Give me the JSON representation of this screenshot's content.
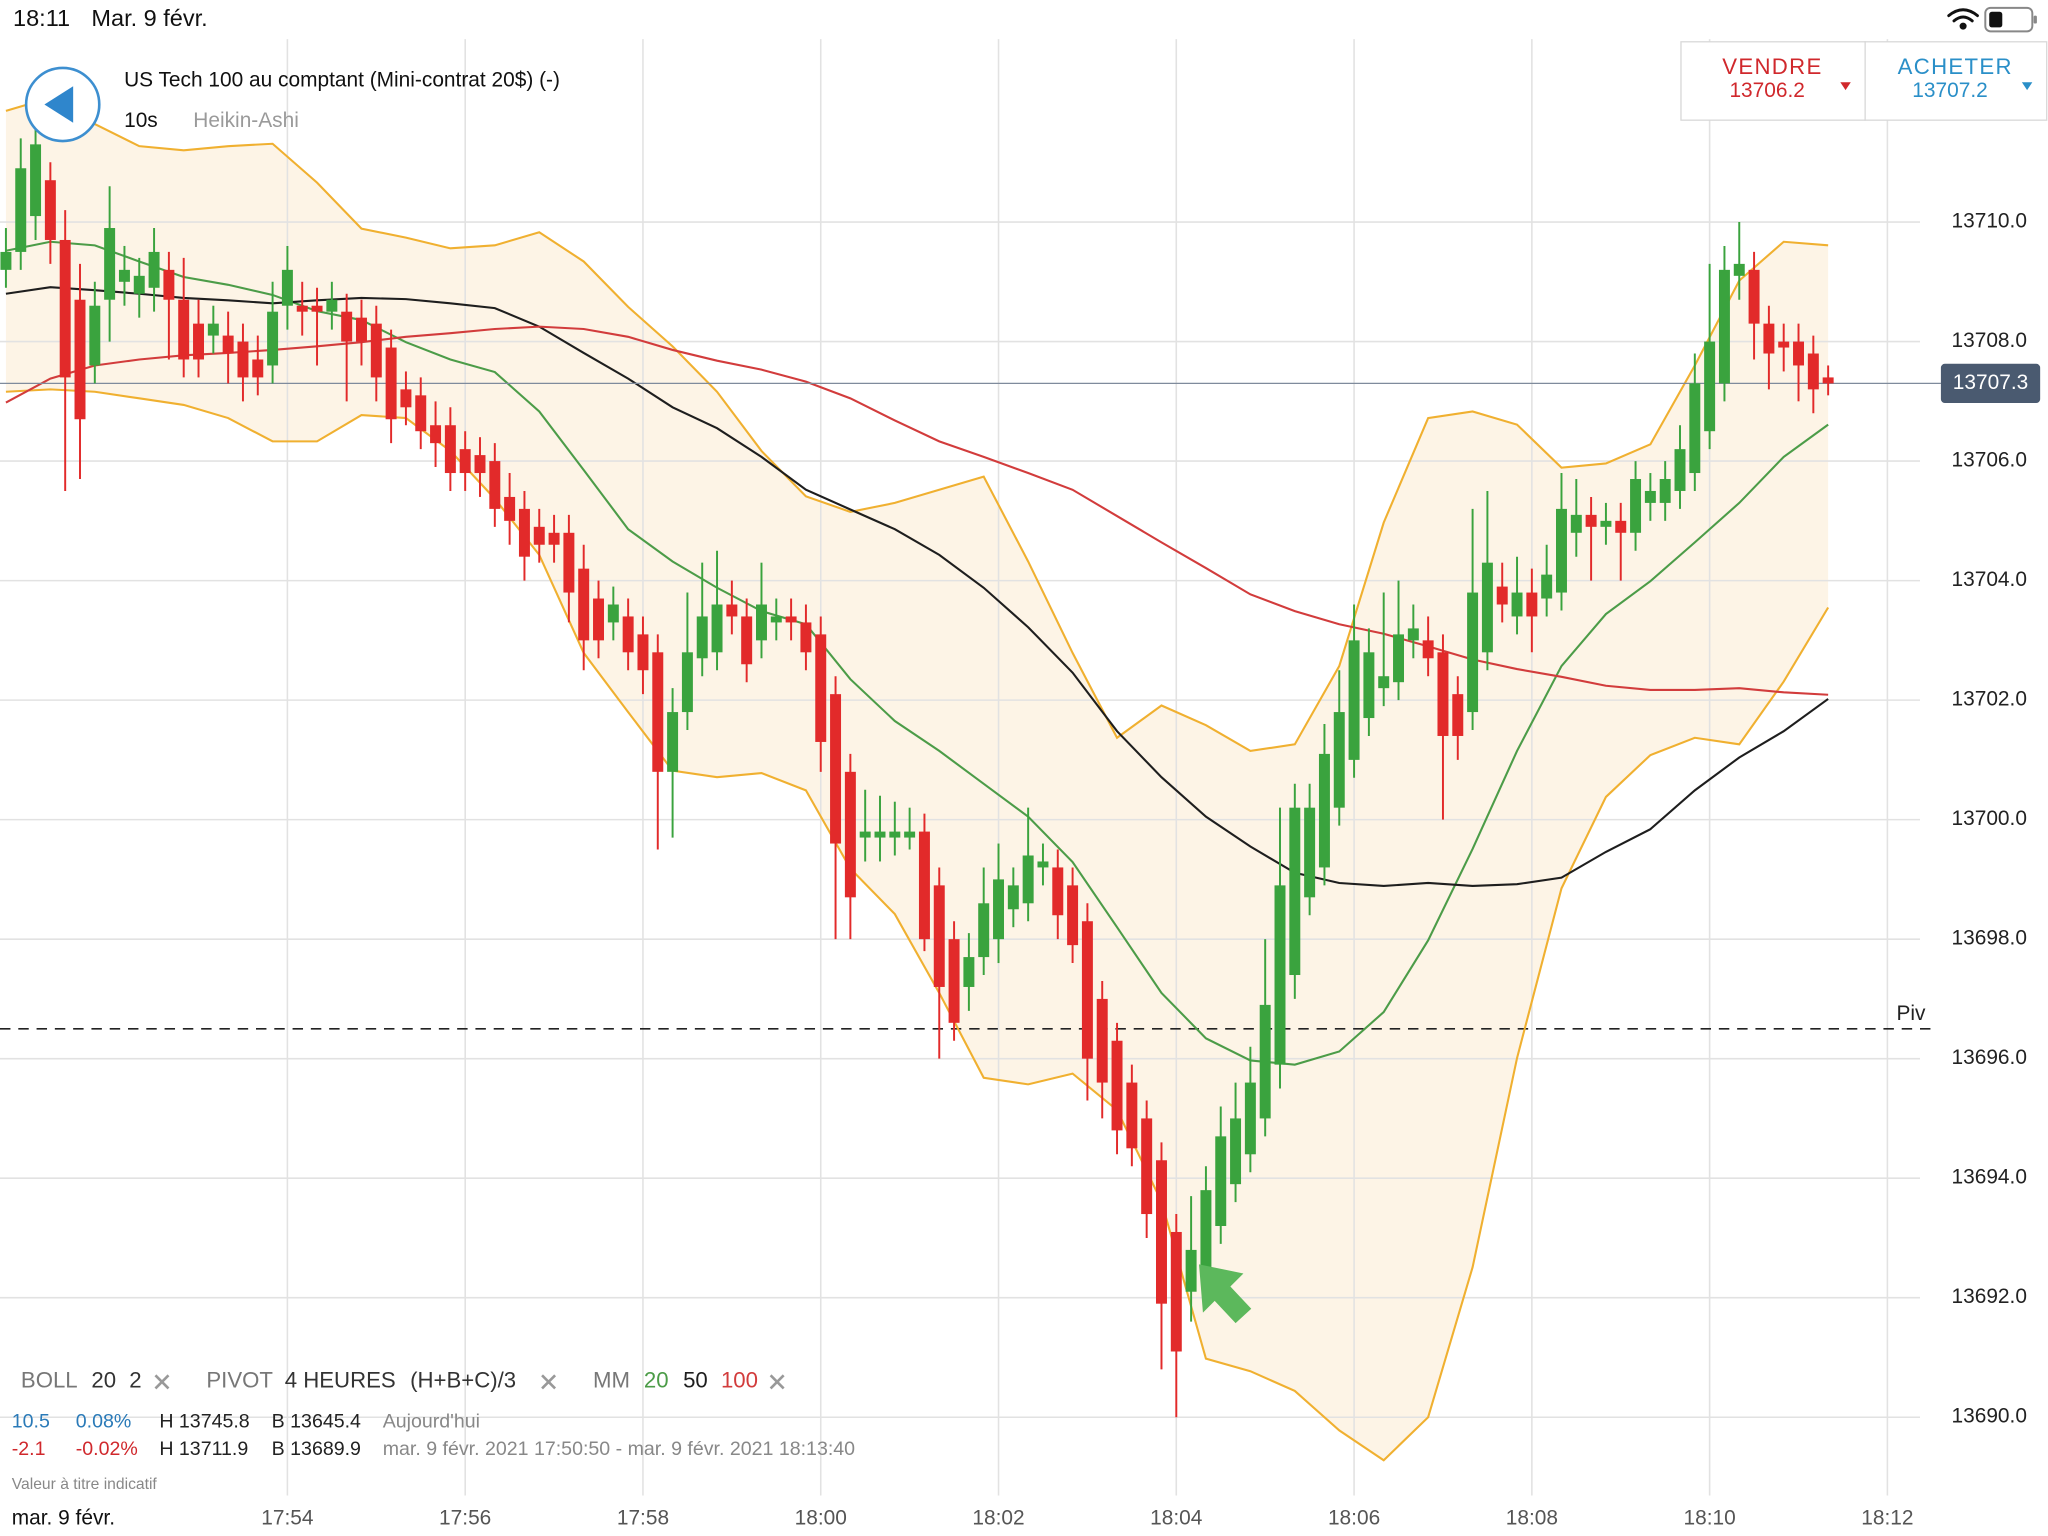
{
  "status_bar": {
    "time": "18:11",
    "date": "Mar. 9 févr."
  },
  "header": {
    "title": "US Tech 100 au comptant (Mini-contrat 20$) (-)",
    "interval": "10s",
    "chart_style": "Heikin-Ashi"
  },
  "quote": {
    "sell": {
      "label": "VENDRE",
      "price": 13706.2
    },
    "buy": {
      "label": "ACHETER",
      "price": 13707.2
    }
  },
  "chart_data": {
    "type": "candlestick",
    "x": [
      64250,
      64260,
      64270,
      64280,
      64290,
      64300,
      64310,
      64320,
      64330,
      64340,
      64350,
      64360,
      64370,
      64380,
      64390,
      64400,
      64410,
      64420,
      64430,
      64440,
      64450,
      64460,
      64470,
      64480,
      64490,
      64500,
      64510,
      64520,
      64530,
      64540,
      64550,
      64560,
      64570,
      64580,
      64590,
      64600,
      64610,
      64620,
      64630,
      64640,
      64650,
      64660,
      64670,
      64680,
      64690,
      64700,
      64710,
      64720,
      64730,
      64740,
      64750,
      64760,
      64770,
      64780,
      64790,
      64800,
      64810,
      64820,
      64830,
      64840,
      64850,
      64860,
      64870,
      64880,
      64890,
      64900,
      64910,
      64920,
      64930,
      64940,
      64950,
      64960,
      64970,
      64980,
      64990,
      65000,
      65010,
      65020,
      65030,
      65040,
      65050,
      65060,
      65070,
      65080,
      65090,
      65100,
      65110,
      65120,
      65130,
      65140,
      65150,
      65160,
      65170,
      65180,
      65190,
      65200,
      65210,
      65220,
      65230,
      65240,
      65250,
      65260,
      65270,
      65280,
      65290,
      65300,
      65310,
      65320,
      65330,
      65340,
      65350,
      65360,
      65370,
      65380,
      65390,
      65400,
      65410,
      65420,
      65430,
      65440,
      65450,
      65460,
      65470,
      65480
    ],
    "open": [
      13709.2,
      13709.5,
      13710.1,
      13710.7,
      13709.7,
      13708.7,
      13707.6,
      13708.7,
      13709.0,
      13708.8,
      13708.9,
      13709.2,
      13708.7,
      13708.3,
      13708.1,
      13708.1,
      13708.0,
      13707.7,
      13707.6,
      13708.6,
      13708.6,
      13708.6,
      13708.5,
      13708.5,
      13708.4,
      13708.3,
      13707.9,
      13707.2,
      13707.1,
      13706.6,
      13706.6,
      13706.2,
      13706.1,
      13706.0,
      13705.4,
      13705.2,
      13704.9,
      13704.8,
      13704.8,
      13704.2,
      13703.7,
      13703.3,
      13703.4,
      13703.1,
      13702.8,
      13700.8,
      13701.8,
      13702.7,
      13702.8,
      13703.6,
      13703.4,
      13703.0,
      13703.3,
      13703.4,
      13703.3,
      13703.1,
      13702.1,
      13700.8,
      13699.7,
      13699.7,
      13699.7,
      13699.7,
      13699.8,
      13698.9,
      13698.0,
      13697.2,
      13697.7,
      13698.0,
      13698.5,
      13698.6,
      13699.2,
      13699.2,
      13698.9,
      13698.3,
      13697.0,
      13696.3,
      13695.6,
      13695.0,
      13694.3,
      13693.1,
      13692.1,
      13692.5,
      13693.2,
      13693.9,
      13694.4,
      13695.0,
      13695.9,
      13697.4,
      13698.7,
      13699.2,
      13700.2,
      13701.0,
      13701.7,
      13702.2,
      13702.3,
      13703.0,
      13703.0,
      13702.8,
      13702.1,
      13701.8,
      13702.8,
      13703.9,
      13703.4,
      13703.8,
      13703.7,
      13703.8,
      13704.8,
      13705.1,
      13704.9,
      13705.0,
      13704.8,
      13705.3,
      13705.3,
      13705.5,
      13705.8,
      13706.5,
      13707.3,
      13709.1,
      13709.2,
      13708.3,
      13708.0,
      13708.0,
      13707.8,
      13707.4
    ],
    "high": [
      13709.9,
      13711.4,
      13711.6,
      13711.0,
      13710.2,
      13709.3,
      13709.0,
      13710.6,
      13709.6,
      13709.4,
      13709.9,
      13709.5,
      13709.4,
      13708.7,
      13708.6,
      13708.5,
      13708.3,
      13708.1,
      13709.0,
      13709.6,
      13709.0,
      13708.9,
      13709.0,
      13708.8,
      13708.7,
      13708.6,
      13708.2,
      13707.5,
      13707.4,
      13707.0,
      13706.9,
      13706.5,
      13706.4,
      13706.3,
      13705.8,
      13705.5,
      13705.2,
      13705.1,
      13705.1,
      13704.6,
      13704.0,
      13703.9,
      13703.7,
      13703.4,
      13703.1,
      13702.2,
      13703.8,
      13704.3,
      13704.5,
      13704.0,
      13703.7,
      13704.3,
      13703.7,
      13703.7,
      13703.6,
      13703.4,
      13702.4,
      13701.1,
      13700.5,
      13700.4,
      13700.3,
      13700.2,
      13700.1,
      13699.2,
      13698.3,
      13698.1,
      13699.2,
      13699.6,
      13699.2,
      13700.2,
      13699.6,
      13699.5,
      13699.2,
      13698.6,
      13697.3,
      13696.6,
      13695.9,
      13695.3,
      13694.6,
      13693.4,
      13693.7,
      13694.2,
      13695.2,
      13695.6,
      13696.2,
      13698.0,
      13700.2,
      13700.6,
      13700.6,
      13701.6,
      13702.5,
      13703.6,
      13703.2,
      13703.8,
      13704.0,
      13703.6,
      13703.4,
      13703.1,
      13702.4,
      13705.2,
      13705.5,
      13704.3,
      13704.4,
      13704.2,
      13704.6,
      13705.8,
      13705.7,
      13705.4,
      13705.3,
      13705.3,
      13706.0,
      13705.8,
      13706.0,
      13706.6,
      13707.8,
      13709.3,
      13709.6,
      13710.0,
      13709.5,
      13708.6,
      13708.3,
      13708.3,
      13708.1,
      13707.6
    ],
    "low": [
      13708.9,
      13709.2,
      13709.7,
      13709.3,
      13705.5,
      13705.7,
      13707.3,
      13708.0,
      13708.6,
      13708.4,
      13708.5,
      13707.7,
      13707.4,
      13707.4,
      13707.8,
      13707.3,
      13707.0,
      13707.1,
      13707.3,
      13708.2,
      13708.1,
      13707.6,
      13708.2,
      13707.0,
      13707.6,
      13707.0,
      13706.3,
      13706.6,
      13706.2,
      13705.9,
      13705.5,
      13705.5,
      13705.4,
      13704.9,
      13704.6,
      13704.0,
      13704.3,
      13704.3,
      13703.3,
      13702.5,
      13702.7,
      13703.0,
      13702.5,
      13702.1,
      13699.5,
      13699.7,
      13701.5,
      13702.4,
      13702.5,
      13703.1,
      13702.3,
      13702.7,
      13703.0,
      13703.0,
      13702.5,
      13700.8,
      13698.0,
      13698.0,
      13699.3,
      13699.3,
      13699.4,
      13699.5,
      13697.8,
      13696.0,
      13696.3,
      13696.8,
      13697.4,
      13697.6,
      13698.2,
      13698.3,
      13698.9,
      13698.0,
      13697.6,
      13695.3,
      13695.0,
      13694.4,
      13694.2,
      13693.0,
      13690.8,
      13690.0,
      13691.6,
      13692.2,
      13692.9,
      13693.6,
      13694.1,
      13694.7,
      13695.5,
      13697.0,
      13698.4,
      13698.9,
      13699.9,
      13700.7,
      13701.4,
      13701.9,
      13702.0,
      13702.7,
      13702.4,
      13700.0,
      13701.0,
      13701.5,
      13702.5,
      13703.3,
      13703.1,
      13702.8,
      13703.4,
      13703.5,
      13704.4,
      13704.0,
      13704.6,
      13704.0,
      13704.5,
      13705.0,
      13705.0,
      13705.2,
      13705.5,
      13706.2,
      13707.0,
      13708.7,
      13707.7,
      13707.2,
      13707.5,
      13707.0,
      13706.8,
      13707.1
    ],
    "close": [
      13709.5,
      13710.9,
      13711.3,
      13709.7,
      13707.4,
      13706.7,
      13708.6,
      13709.9,
      13709.2,
      13709.1,
      13709.5,
      13708.7,
      13707.7,
      13707.7,
      13708.3,
      13707.8,
      13707.4,
      13707.4,
      13708.5,
      13709.2,
      13708.5,
      13708.5,
      13708.7,
      13708.0,
      13708.0,
      13707.4,
      13706.7,
      13706.9,
      13706.5,
      13706.3,
      13705.8,
      13705.8,
      13705.8,
      13705.2,
      13705.0,
      13704.4,
      13704.6,
      13704.6,
      13703.8,
      13703.0,
      13703.0,
      13703.6,
      13702.8,
      13702.5,
      13700.8,
      13701.8,
      13702.8,
      13703.4,
      13703.6,
      13703.4,
      13702.6,
      13703.6,
      13703.4,
      13703.3,
      13702.8,
      13701.3,
      13699.6,
      13698.7,
      13699.8,
      13699.8,
      13699.8,
      13699.8,
      13698.0,
      13697.2,
      13696.6,
      13697.7,
      13698.6,
      13699.0,
      13698.9,
      13699.4,
      13699.3,
      13698.4,
      13697.9,
      13696.0,
      13695.6,
      13694.8,
      13694.5,
      13693.4,
      13691.9,
      13691.1,
      13692.8,
      13693.8,
      13694.7,
      13695.0,
      13695.6,
      13696.9,
      13698.9,
      13700.2,
      13700.2,
      13701.1,
      13701.8,
      13703.0,
      13702.8,
      13702.4,
      13703.1,
      13703.2,
      13702.7,
      13701.4,
      13701.4,
      13703.8,
      13704.3,
      13703.6,
      13703.8,
      13703.4,
      13704.1,
      13705.2,
      13705.1,
      13704.9,
      13705.0,
      13704.8,
      13705.7,
      13705.5,
      13705.7,
      13706.2,
      13707.3,
      13708.0,
      13709.2,
      13709.3,
      13708.3,
      13707.8,
      13707.9,
      13707.6,
      13707.2,
      13707.3
    ],
    "up_color": "#3aa33e",
    "down_color": "#e22a2a",
    "xlim": [
      64246,
      65542
    ],
    "xticks": [
      {
        "value": 64440,
        "label": "17:54"
      },
      {
        "value": 64560,
        "label": "17:56"
      },
      {
        "value": 64680,
        "label": "17:58"
      },
      {
        "value": 64800,
        "label": "18:00"
      },
      {
        "value": 64920,
        "label": "18:02"
      },
      {
        "value": 65040,
        "label": "18:04"
      },
      {
        "value": 65160,
        "label": "18:06"
      },
      {
        "value": 65280,
        "label": "18:08"
      },
      {
        "value": 65400,
        "label": "18:10"
      },
      {
        "value": 65520,
        "label": "18:12"
      }
    ],
    "ylim": [
      13688.69,
      13713.06
    ],
    "yticks": [
      {
        "value": 13690,
        "label": "13690.0"
      },
      {
        "value": 13692,
        "label": "13692.0"
      },
      {
        "value": 13694,
        "label": "13694.0"
      },
      {
        "value": 13696,
        "label": "13696.0"
      },
      {
        "value": 13698,
        "label": "13698.0"
      },
      {
        "value": 13700,
        "label": "13700.0"
      },
      {
        "value": 13702,
        "label": "13702.0"
      },
      {
        "value": 13704,
        "label": "13704.0"
      },
      {
        "value": 13706,
        "label": "13706.0"
      },
      {
        "value": 13708,
        "label": "13708.0"
      },
      {
        "value": 13710,
        "label": "13710.0"
      }
    ],
    "grid": true,
    "x_date": "mar. 9 févr.",
    "last_price": 13707.3,
    "pivot": {
      "value": 13696.5,
      "label": "Piv"
    },
    "overlays": {
      "x": [
        64250,
        64280,
        64310,
        64340,
        64370,
        64400,
        64430,
        64460,
        64490,
        64520,
        64550,
        64580,
        64610,
        64640,
        64670,
        64700,
        64730,
        64760,
        64790,
        64820,
        64850,
        64880,
        64910,
        64940,
        64970,
        65000,
        65030,
        65060,
        65090,
        65120,
        65150,
        65180,
        65210,
        65240,
        65270,
        65300,
        65330,
        65360,
        65390,
        65420,
        65450,
        65480
      ],
      "band_fill": "#fdf4e6",
      "series": [
        {
          "color": "#f0b030",
          "values": [
            13711.86,
            13712.08,
            13711.64,
            13711.27,
            13711.2,
            13711.27,
            13711.31,
            13710.66,
            13709.89,
            13709.74,
            13709.56,
            13709.61,
            13709.83,
            13709.34,
            13708.58,
            13707.92,
            13707.16,
            13706.17,
            13705.41,
            13705.15,
            13705.3,
            13705.52,
            13705.74,
            13704.32,
            13702.79,
            13701.37,
            13701.91,
            13701.58,
            13701.15,
            13701.26,
            13702.57,
            13704.97,
            13706.72,
            13706.83,
            13706.61,
            13705.89,
            13705.96,
            13706.28,
            13707.6,
            13709.02,
            13709.67,
            13709.61
          ]
        },
        {
          "color": "#f0b030",
          "values": [
            13707.16,
            13707.2,
            13707.16,
            13707.05,
            13706.94,
            13706.72,
            13706.33,
            13706.33,
            13706.77,
            13706.72,
            13706.17,
            13705.37,
            13704.43,
            13702.79,
            13701.8,
            13700.82,
            13700.71,
            13700.78,
            13700.49,
            13699.18,
            13698.42,
            13697.1,
            13695.68,
            13695.57,
            13695.75,
            13695.14,
            13693.61,
            13690.98,
            13690.77,
            13690.44,
            13689.78,
            13689.28,
            13690.0,
            13692.51,
            13696.01,
            13698.85,
            13700.38,
            13701.08,
            13701.37,
            13701.26,
            13702.31,
            13703.55
          ]
        },
        {
          "name": "20",
          "color": "#4c9c48",
          "values": [
            13709.52,
            13709.67,
            13709.61,
            13709.34,
            13709.08,
            13708.95,
            13708.78,
            13708.51,
            13708.36,
            13707.99,
            13707.7,
            13707.49,
            13706.83,
            13705.85,
            13704.86,
            13704.32,
            13703.88,
            13703.49,
            13703.27,
            13702.35,
            13701.65,
            13701.15,
            13700.6,
            13700.05,
            13699.29,
            13698.2,
            13697.1,
            13696.34,
            13695.97,
            13695.9,
            13696.12,
            13696.78,
            13697.98,
            13699.51,
            13701.15,
            13702.57,
            13703.44,
            13703.99,
            13704.64,
            13705.3,
            13706.07,
            13706.61
          ]
        },
        {
          "name": "50",
          "color": "#1e1e1e",
          "values": [
            13708.8,
            13708.91,
            13708.86,
            13708.8,
            13708.73,
            13708.69,
            13708.64,
            13708.69,
            13708.73,
            13708.71,
            13708.64,
            13708.56,
            13708.25,
            13707.81,
            13707.38,
            13706.9,
            13706.55,
            13706.07,
            13705.52,
            13705.19,
            13704.86,
            13704.43,
            13703.88,
            13703.22,
            13702.46,
            13701.48,
            13700.71,
            13700.05,
            13699.55,
            13699.11,
            13698.94,
            13698.89,
            13698.94,
            13698.89,
            13698.92,
            13699.03,
            13699.46,
            13699.84,
            13700.49,
            13701.04,
            13701.48,
            13702.02
          ]
        },
        {
          "name": "100",
          "color": "#d23c3c",
          "values": [
            13706.98,
            13707.38,
            13707.6,
            13707.7,
            13707.77,
            13707.81,
            13707.86,
            13707.92,
            13707.99,
            13708.08,
            13708.14,
            13708.21,
            13708.25,
            13708.21,
            13708.08,
            13707.86,
            13707.68,
            13707.53,
            13707.33,
            13707.05,
            13706.68,
            13706.33,
            13706.07,
            13705.8,
            13705.52,
            13705.08,
            13704.64,
            13704.21,
            13703.77,
            13703.49,
            13703.27,
            13703.11,
            13702.9,
            13702.68,
            13702.52,
            13702.39,
            13702.24,
            13702.17,
            13702.17,
            13702.2,
            13702.13,
            13702.09
          ]
        }
      ]
    }
  },
  "indicators": {
    "boll": {
      "label": "BOLL",
      "period": 20,
      "width": 2
    },
    "pivot": {
      "label": "PIVOT",
      "period": "4 HEURES",
      "formula": "(H+B+C)/3"
    },
    "mm": {
      "label": "MM"
    }
  },
  "info": {
    "rows": [
      [
        "10.5",
        "0.08%",
        "H 13745.8",
        "B 13645.4",
        "Aujourd'hui"
      ],
      [
        "-2.1",
        "-0.02%",
        "H 13711.9",
        "B 13689.9",
        "mar. 9 févr. 2021 17:50:50 - mar. 9 févr. 2021 18:13:40"
      ]
    ],
    "note": "Valeur à titre indicatif"
  }
}
